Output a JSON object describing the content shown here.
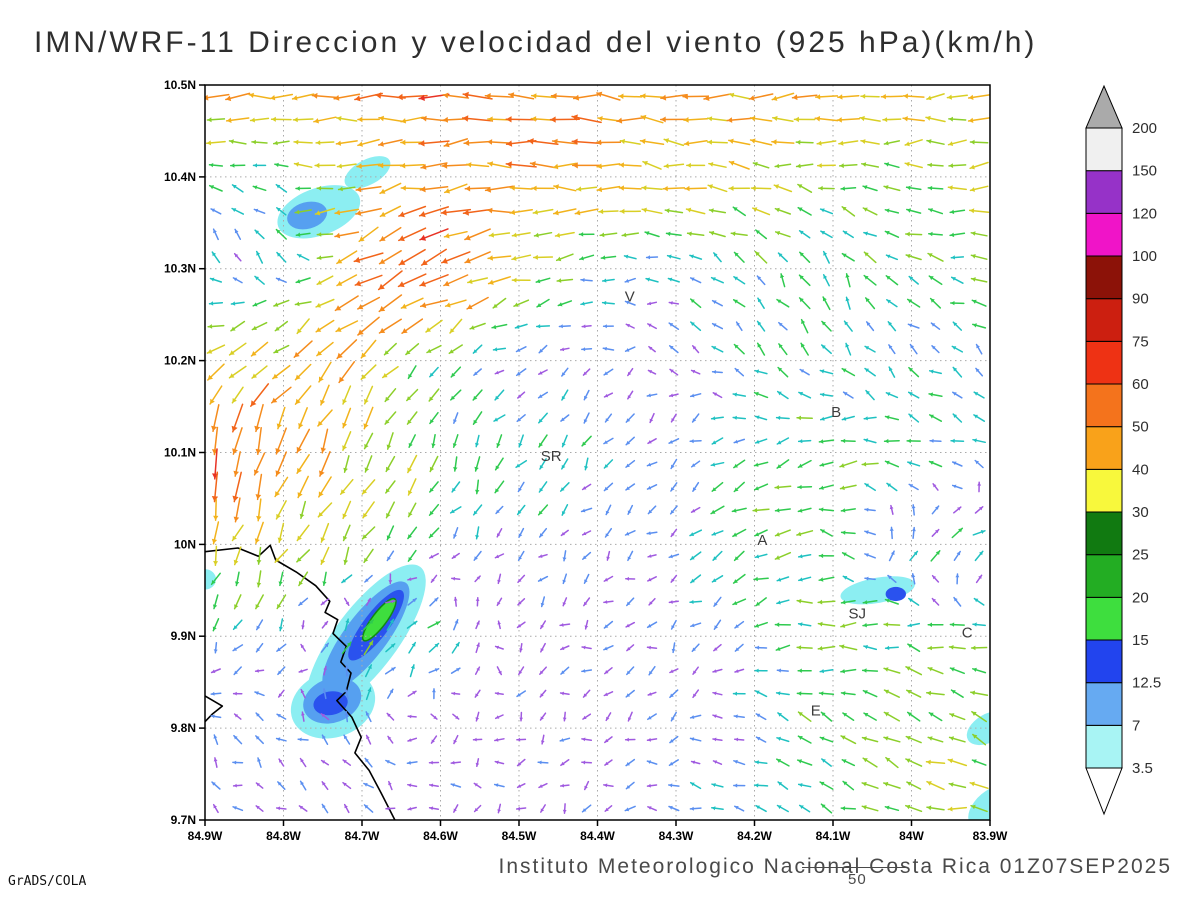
{
  "title": "IMN/WRF-11 Direccion y velocidad del viento (925 hPa)(km/h)",
  "footer": {
    "text": "Instituto Meteorologico Nacional Costa Rica 01Z07SEP2025",
    "contour_label": "50"
  },
  "credit": "GrADS/COLA",
  "chart_data": {
    "type": "vector-field-map",
    "model": "IMN/WRF-11",
    "variable": "Direccion y velocidad del viento",
    "level": "925 hPa",
    "units": "km/h",
    "valid_time": "01Z07SEP2025",
    "extent": {
      "lon_left_w": 84.9,
      "lon_right_w": 83.9,
      "lat_top_n": 10.5,
      "lat_bottom_n": 9.7
    },
    "x_axis": {
      "ticks": [
        "84.9W",
        "84.8W",
        "84.7W",
        "84.6W",
        "84.5W",
        "84.4W",
        "84.3W",
        "84.2W",
        "84.1W",
        "84W",
        "83.9W"
      ],
      "values": [
        84.9,
        84.8,
        84.7,
        84.6,
        84.5,
        84.4,
        84.3,
        84.2,
        84.1,
        84.0,
        83.9
      ]
    },
    "y_axis": {
      "ticks": [
        "10.5N",
        "10.4N",
        "10.3N",
        "10.2N",
        "10.1N",
        "10N",
        "9.9N",
        "9.8N",
        "9.7N"
      ],
      "values": [
        10.5,
        10.4,
        10.3,
        10.2,
        10.1,
        10.0,
        9.9,
        9.8,
        9.7
      ]
    },
    "legend": {
      "boundaries": [
        "3.5",
        "7",
        "12.5",
        "15",
        "20",
        "25",
        "30",
        "40",
        "50",
        "60",
        "75",
        "90",
        "100",
        "120",
        "150",
        "200"
      ],
      "band_colors": [
        "#a8f4f4",
        "#66aaf2",
        "#2244ee",
        "#3ede3e",
        "#23ad23",
        "#117a11",
        "#f8f83c",
        "#f9a21a",
        "#f4731c",
        "#ee3214",
        "#cc1f10",
        "#8c1208",
        "#f014c8",
        "#9632c8",
        "#f0f0f0"
      ],
      "over_color": "#aaaaaa",
      "under_color": "#ffffff"
    },
    "stations": [
      {
        "label": "V",
        "lon_w": 84.359,
        "lat_n": 10.27
      },
      {
        "label": "B",
        "lon_w": 84.096,
        "lat_n": 10.144
      },
      {
        "label": "SR",
        "lon_w": 84.459,
        "lat_n": 10.096
      },
      {
        "label": "A",
        "lon_w": 84.19,
        "lat_n": 10.005
      },
      {
        "label": "SJ",
        "lon_w": 84.069,
        "lat_n": 9.925
      },
      {
        "label": "C",
        "lon_w": 83.929,
        "lat_n": 9.904
      },
      {
        "label": "E",
        "lon_w": 84.122,
        "lat_n": 9.819
      }
    ],
    "shaded_regions": [
      {
        "name": "nw-cyan",
        "color": "#8ceef2",
        "lon_w": 84.755,
        "lat_n": 10.362,
        "rx": 0.055,
        "ry": 0.03,
        "rot": -20
      },
      {
        "name": "nw-cyan-tail",
        "color": "#8ceef2",
        "lon_w": 84.693,
        "lat_n": 10.405,
        "rx": 0.032,
        "ry": 0.016,
        "rot": -28
      },
      {
        "name": "west-edge-cyan",
        "color": "#8ceef2",
        "lon_w": 84.9,
        "lat_n": 9.962,
        "rx": 0.014,
        "ry": 0.013,
        "rot": 0
      },
      {
        "name": "sw-cyan-main",
        "color": "#8ceef2",
        "lon_w": 84.695,
        "lat_n": 9.897,
        "rx": 0.115,
        "ry": 0.04,
        "rot": -53
      },
      {
        "name": "sw-cyan-foot",
        "color": "#8ceef2",
        "lon_w": 84.737,
        "lat_n": 9.826,
        "rx": 0.055,
        "ry": 0.042,
        "rot": -20
      },
      {
        "name": "sj-cyan",
        "color": "#8ceef2",
        "lon_w": 84.043,
        "lat_n": 9.95,
        "rx": 0.048,
        "ry": 0.016,
        "rot": -10
      },
      {
        "name": "se-edge-cyan",
        "color": "#8ceef2",
        "lon_w": 83.902,
        "lat_n": 9.8,
        "rx": 0.03,
        "ry": 0.018,
        "rot": -30
      },
      {
        "name": "corner-cyan",
        "color": "#8ceef2",
        "lon_w": 83.898,
        "lat_n": 9.715,
        "rx": 0.035,
        "ry": 0.02,
        "rot": -40
      },
      {
        "name": "nw-blue",
        "color": "#56a0f0",
        "lon_w": 84.77,
        "lat_n": 10.358,
        "rx": 0.026,
        "ry": 0.017,
        "rot": -15
      },
      {
        "name": "sw-cornflower-main",
        "color": "#56a0f0",
        "lon_w": 84.695,
        "lat_n": 9.9,
        "rx": 0.085,
        "ry": 0.027,
        "rot": -53
      },
      {
        "name": "sw-cornflower-foot",
        "color": "#56a0f0",
        "lon_w": 84.738,
        "lat_n": 9.83,
        "rx": 0.038,
        "ry": 0.028,
        "rot": -20
      },
      {
        "name": "sw-blue-core",
        "color": "#2a52ee",
        "lon_w": 84.682,
        "lat_n": 9.912,
        "rx": 0.055,
        "ry": 0.016,
        "rot": -53
      },
      {
        "name": "sw-blue-foot",
        "color": "#2a52ee",
        "lon_w": 84.74,
        "lat_n": 9.827,
        "rx": 0.022,
        "ry": 0.015,
        "rot": -10
      },
      {
        "name": "sj-blue-dot",
        "color": "#2a52ee",
        "lon_w": 84.02,
        "lat_n": 9.946,
        "rx": 0.013,
        "ry": 0.009,
        "rot": 0
      },
      {
        "name": "sw-green-core",
        "color": "#3ede3e",
        "lon_w": 84.678,
        "lat_n": 9.918,
        "rx": 0.033,
        "ry": 0.009,
        "rot": -53,
        "stroke": "#118a11"
      }
    ],
    "coastline": [
      [
        [
          84.9,
          9.992
        ],
        [
          84.858,
          9.996
        ],
        [
          84.832,
          9.987
        ],
        [
          84.817,
          9.999
        ],
        [
          84.81,
          9.983
        ],
        [
          84.784,
          9.97
        ],
        [
          84.759,
          9.955
        ],
        [
          84.741,
          9.938
        ],
        [
          84.747,
          9.926
        ],
        [
          84.731,
          9.918
        ],
        [
          84.737,
          9.903
        ],
        [
          84.72,
          9.889
        ],
        [
          84.727,
          9.872
        ],
        [
          84.714,
          9.86
        ],
        [
          84.72,
          9.84
        ],
        [
          84.732,
          9.83
        ],
        [
          84.713,
          9.812
        ],
        [
          84.701,
          9.79
        ],
        [
          84.709,
          9.773
        ],
        [
          84.691,
          9.754
        ],
        [
          84.676,
          9.73
        ],
        [
          84.657,
          9.698
        ]
      ],
      [
        [
          84.9,
          9.835
        ],
        [
          84.878,
          9.824
        ],
        [
          84.891,
          9.815
        ],
        [
          84.9,
          9.807
        ]
      ]
    ],
    "wind_grid": {
      "lon_w": [
        84.9,
        84.8,
        84.7,
        84.6,
        84.5,
        84.4,
        84.3,
        84.2,
        84.1,
        84.0,
        83.9
      ],
      "lat_n": [
        10.5,
        10.4,
        10.3,
        10.2,
        10.1,
        10.0,
        9.9,
        9.8,
        9.7
      ],
      "u_kmh": [
        [
          -38,
          -45,
          -48,
          -50,
          -48,
          -45,
          -42,
          -40,
          -35,
          -30,
          -28
        ],
        [
          -12,
          -10,
          -32,
          -45,
          -46,
          -40,
          -32,
          -26,
          -20,
          -22,
          -25
        ],
        [
          -4,
          -8,
          -45,
          -55,
          -25,
          -12,
          -8,
          -10,
          -6,
          -14,
          -18
        ],
        [
          -22,
          -30,
          -22,
          -8,
          -5,
          -4,
          -4,
          -8,
          -10,
          -8,
          -6
        ],
        [
          -8,
          -15,
          -12,
          -6,
          -8,
          -6,
          -5,
          -15,
          -20,
          -15,
          -10
        ],
        [
          -5,
          -12,
          -15,
          -6,
          -4,
          -4,
          -6,
          -18,
          -14,
          8,
          12
        ],
        [
          -4,
          -5,
          12,
          10,
          -3,
          -3,
          -4,
          -10,
          -20,
          -18,
          -15
        ],
        [
          -3,
          -4,
          -4,
          -3,
          -3,
          -3,
          -4,
          -8,
          -15,
          -20,
          -22
        ],
        [
          -3,
          -4,
          -4,
          -4,
          -3,
          -4,
          -6,
          -10,
          -15,
          -20,
          -22
        ]
      ],
      "v_kmh": [
        [
          -5,
          -3,
          0,
          2,
          3,
          2,
          0,
          -2,
          -3,
          -2,
          0
        ],
        [
          5,
          3,
          -6,
          -4,
          0,
          3,
          5,
          5,
          3,
          0,
          -3
        ],
        [
          8,
          10,
          -25,
          -28,
          -6,
          -3,
          5,
          12,
          15,
          8,
          2
        ],
        [
          -15,
          -22,
          -28,
          -8,
          -3,
          -3,
          3,
          8,
          10,
          8,
          5
        ],
        [
          -60,
          -45,
          -30,
          -15,
          -12,
          -8,
          -5,
          -8,
          -5,
          3,
          5
        ],
        [
          -25,
          -28,
          -20,
          -8,
          -5,
          -4,
          -3,
          -8,
          5,
          10,
          5
        ],
        [
          -8,
          -5,
          15,
          12,
          -3,
          -2,
          -3,
          -5,
          -3,
          2,
          3
        ],
        [
          4,
          3,
          5,
          -3,
          -3,
          -2,
          -3,
          5,
          10,
          12,
          8
        ],
        [
          3,
          2,
          3,
          2,
          -2,
          -3,
          3,
          5,
          5,
          3,
          2
        ]
      ]
    },
    "arrow_palette": {
      "levels": [
        6,
        10,
        14,
        19,
        25,
        32,
        40,
        50,
        60,
        75
      ],
      "colors": [
        "#a05ae0",
        "#5b8ff0",
        "#1fc1c1",
        "#2fca4f",
        "#8ccf2a",
        "#d9cf25",
        "#f2b31c",
        "#f58c1d",
        "#f2641a",
        "#e83224",
        "#e0218a"
      ]
    }
  }
}
